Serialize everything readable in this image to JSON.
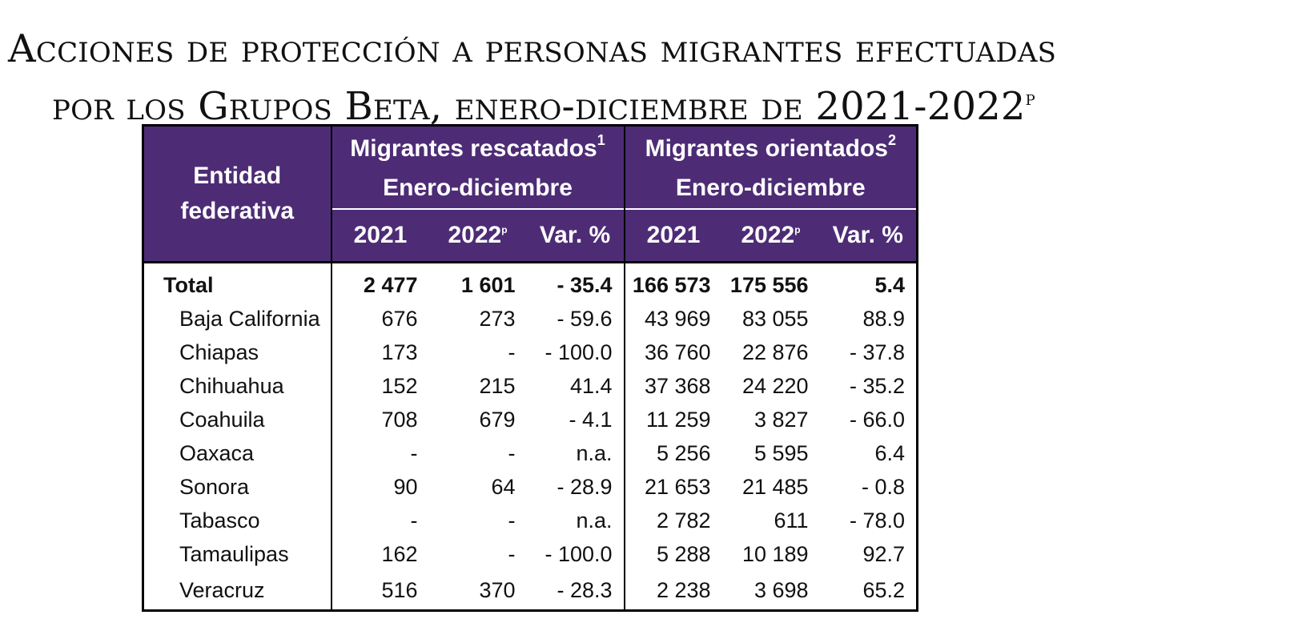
{
  "title": {
    "line1": "Acciones de protección a personas migrantes efectuadas",
    "line2": "por los Grupos Beta, enero-diciembre de 2021-2022",
    "line2_sup": "p"
  },
  "table": {
    "header": {
      "entidad_line1": "Entidad",
      "entidad_line2": "federativa",
      "group1_title": "Migrantes rescatados",
      "group1_note": "1",
      "group1_period": "Enero-diciembre",
      "group2_title": "Migrantes orientados",
      "group2_note": "2",
      "group2_period": "Enero-diciembre",
      "col_2021": "2021",
      "col_2022": "2022",
      "col_2022_sup": "p",
      "col_var": "Var. %"
    },
    "rows": [
      {
        "name": "Total",
        "r2021": "2 477",
        "r2022": "1 601",
        "rvar": "- 35.4",
        "o2021": "166 573",
        "o2022": "175 556",
        "ovar": "5.4"
      },
      {
        "name": "Baja California",
        "r2021": "676",
        "r2022": "273",
        "rvar": "- 59.6",
        "o2021": "43 969",
        "o2022": "83 055",
        "ovar": "88.9"
      },
      {
        "name": "Chiapas",
        "r2021": "173",
        "r2022": "-",
        "rvar": "- 100.0",
        "o2021": "36 760",
        "o2022": "22 876",
        "ovar": "- 37.8"
      },
      {
        "name": "Chihuahua",
        "r2021": "152",
        "r2022": "215",
        "rvar": "41.4",
        "o2021": "37 368",
        "o2022": "24 220",
        "ovar": "- 35.2"
      },
      {
        "name": "Coahuila",
        "r2021": "708",
        "r2022": "679",
        "rvar": "- 4.1",
        "o2021": "11 259",
        "o2022": "3 827",
        "ovar": "- 66.0"
      },
      {
        "name": "Oaxaca",
        "r2021": "-",
        "r2022": "-",
        "rvar": "n.a.",
        "o2021": "5 256",
        "o2022": "5 595",
        "ovar": "6.4"
      },
      {
        "name": "Sonora",
        "r2021": "90",
        "r2022": "64",
        "rvar": "- 28.9",
        "o2021": "21 653",
        "o2022": "21 485",
        "ovar": "- 0.8"
      },
      {
        "name": "Tabasco",
        "r2021": "-",
        "r2022": "-",
        "rvar": "n.a.",
        "o2021": "2 782",
        "o2022": "611",
        "ovar": "- 78.0"
      },
      {
        "name": "Tamaulipas",
        "r2021": "162",
        "r2022": "-",
        "rvar": "- 100.0",
        "o2021": "5 288",
        "o2022": "10 189",
        "ovar": "92.7"
      },
      {
        "name": "Veracruz",
        "r2021": "516",
        "r2022": "370",
        "rvar": "- 28.3",
        "o2021": "2 238",
        "o2022": "3 698",
        "ovar": "65.2"
      }
    ]
  }
}
